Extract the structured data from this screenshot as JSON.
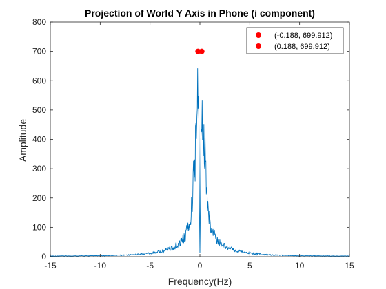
{
  "chart_data": {
    "type": "line",
    "title": "Projection of World Y Axis in Phone (i component)",
    "xlabel": "Frequency(Hz)",
    "ylabel": "Amplitude",
    "xlim": [
      -15,
      15
    ],
    "ylim": [
      0,
      800
    ],
    "xticks": [
      -15,
      -10,
      -5,
      0,
      5,
      10,
      15
    ],
    "yticks": [
      0,
      100,
      200,
      300,
      400,
      500,
      600,
      700,
      800
    ],
    "xtick_labels": [
      "-15",
      "-10",
      "-5",
      "0",
      "5",
      "10",
      "15"
    ],
    "ytick_labels": [
      "0",
      "100",
      "200",
      "300",
      "400",
      "500",
      "600",
      "700",
      "800"
    ],
    "grid": false,
    "legend_position": "top-right",
    "series": [
      {
        "color": "#0072BD",
        "x": [
          -15,
          -10,
          -7,
          -5,
          -4,
          -3,
          -2.5,
          -2,
          -1.5,
          -1.2,
          -1.0,
          -0.8,
          -0.6,
          -0.4,
          -0.3,
          -0.188,
          -0.1,
          0,
          0.1,
          0.188,
          0.3,
          0.4,
          0.6,
          0.8,
          1.0,
          1.2,
          1.5,
          2,
          2.5,
          3,
          4,
          5,
          7,
          10,
          15
        ],
        "y": [
          3,
          4,
          8,
          15,
          22,
          35,
          45,
          60,
          90,
          120,
          160,
          250,
          380,
          520,
          620,
          699.912,
          450,
          20,
          450,
          699.912,
          620,
          520,
          380,
          250,
          160,
          120,
          90,
          60,
          45,
          35,
          22,
          15,
          8,
          4,
          3
        ]
      }
    ],
    "markers": [
      {
        "label": "(-0.188, 699.912)",
        "x": -0.188,
        "y": 699.912,
        "color": "#FF0000"
      },
      {
        "label": "(0.188, 699.912)",
        "x": 0.188,
        "y": 699.912,
        "color": "#FF0000"
      }
    ],
    "colors": {
      "axis": "#262626",
      "line": "#0072BD",
      "marker": "#FF0000"
    }
  }
}
